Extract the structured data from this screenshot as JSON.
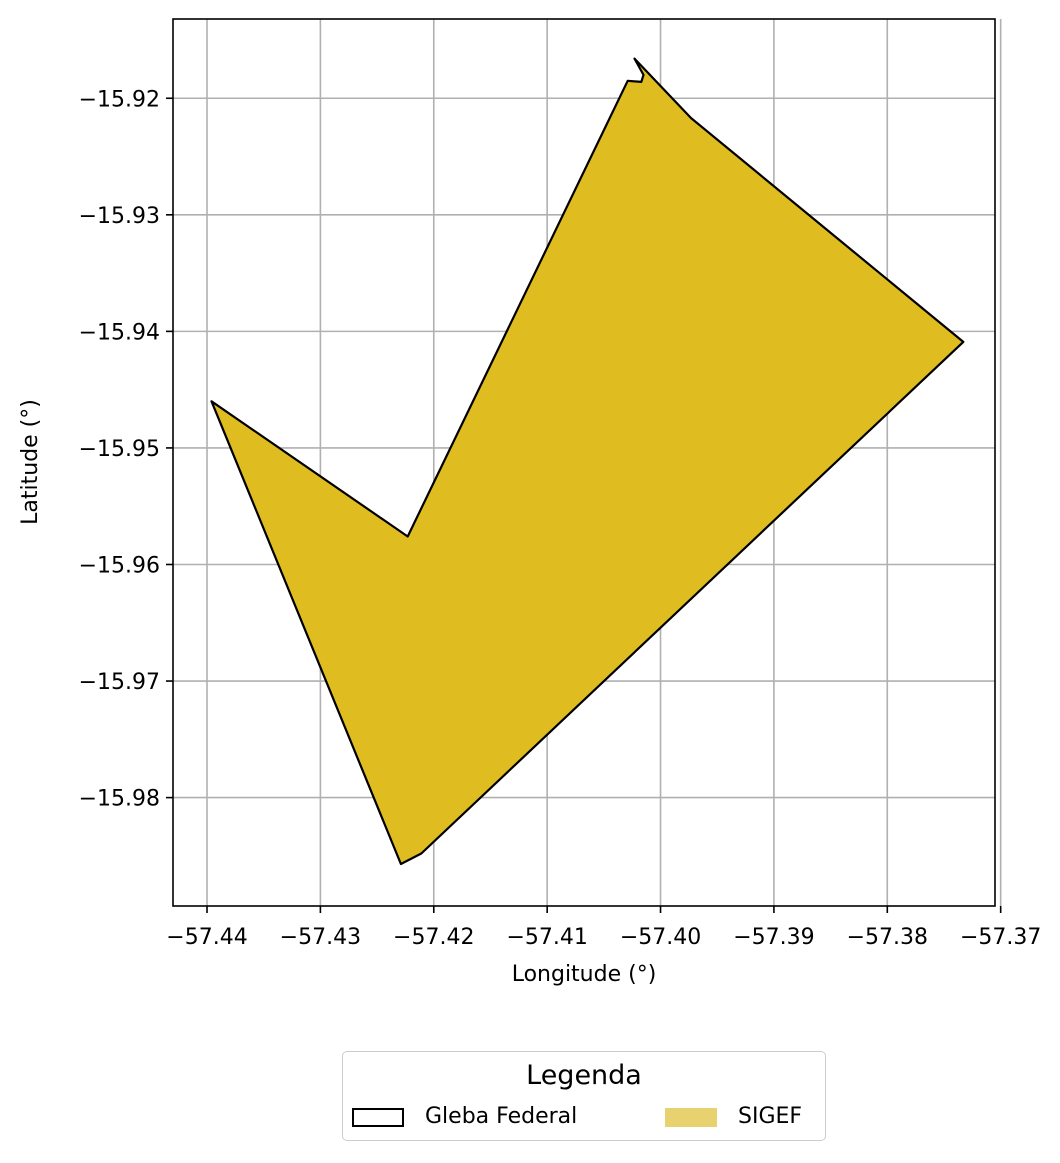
{
  "chart_data": {
    "type": "map",
    "xlabel": "Longitude (°)",
    "ylabel": "Latitude (°)",
    "xlim": [
      -57.443,
      -57.3705
    ],
    "ylim": [
      -15.9893,
      -15.9132
    ],
    "xticks": [
      -57.44,
      -57.43,
      -57.42,
      -57.41,
      -57.4,
      -57.39,
      -57.38,
      -57.37
    ],
    "xtick_labels": [
      "−57.44",
      "−57.43",
      "−57.42",
      "−57.41",
      "−57.40",
      "−57.39",
      "−57.38",
      "−57.37"
    ],
    "yticks": [
      -15.92,
      -15.93,
      -15.94,
      -15.95,
      -15.96,
      -15.97,
      -15.98
    ],
    "ytick_labels": [
      "−15.92",
      "−15.93",
      "−15.94",
      "−15.95",
      "−15.96",
      "−15.97",
      "−15.98"
    ],
    "grid": true,
    "colors": {
      "fill": "#dfbd21",
      "edge": "#000000",
      "grid": "#b0b0b0",
      "legend_fill": "#e8d270"
    },
    "polygon": [
      [
        -57.4023,
        -15.9166
      ],
      [
        -57.3973,
        -15.9217
      ],
      [
        -57.3733,
        -15.9409
      ],
      [
        -57.4211,
        -15.9848
      ],
      [
        -57.4229,
        -15.9857
      ],
      [
        -57.4396,
        -15.946
      ],
      [
        -57.4223,
        -15.9576
      ],
      [
        -57.4029,
        -15.9185
      ],
      [
        -57.4017,
        -15.9186
      ],
      [
        -57.4015,
        -15.918
      ]
    ]
  },
  "legend": {
    "title": "Legenda",
    "items": [
      {
        "label": "Gleba Federal",
        "swatch": "outline"
      },
      {
        "label": "SIGEF",
        "swatch": "fill"
      }
    ]
  }
}
